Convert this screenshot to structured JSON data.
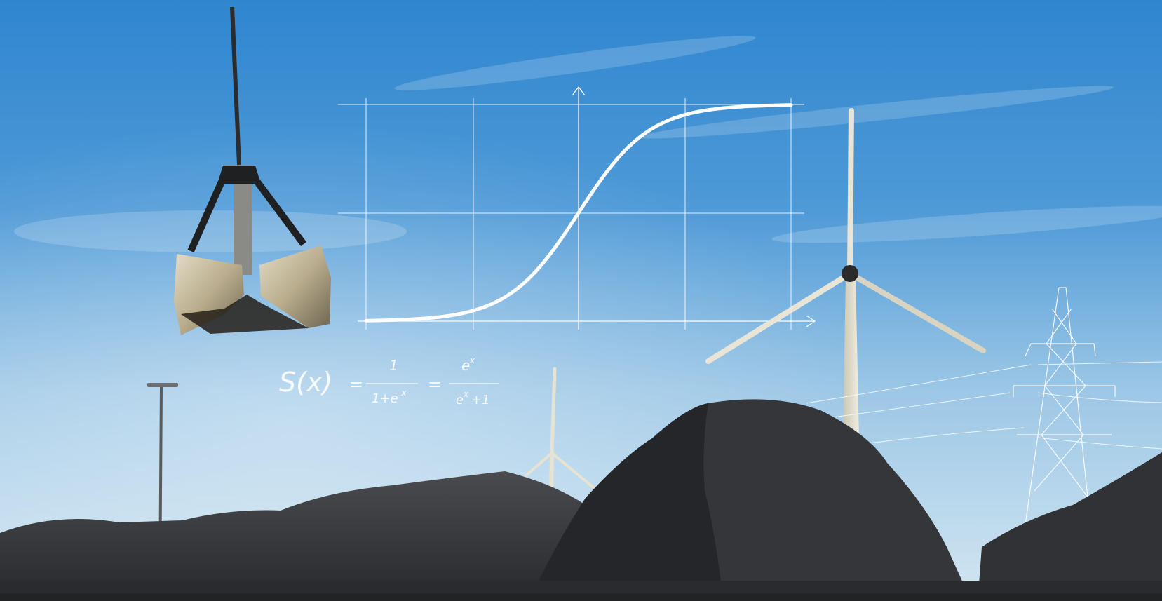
{
  "scene": {
    "description_free": true,
    "sky_colors": [
      "#2f86cf",
      "#5aa5dd",
      "#a9cfea",
      "#d6e7f1"
    ],
    "coal_color": "#3a3b3e",
    "line_color": "#ffffff"
  },
  "formula": {
    "lhs": "S(x)",
    "eq1": "=",
    "num1": "1",
    "den1": "1+e",
    "den1_exp": "-x",
    "eq2": "=",
    "num2": "e",
    "num2_exp": "x",
    "den2": "e",
    "den2_exp": "x",
    "den2_tail": "+1"
  },
  "chart_data": {
    "type": "line",
    "series": [
      {
        "values_fn": "sigmoid",
        "x": [
          -6,
          -5,
          -4,
          -3,
          -2,
          -1,
          0,
          1,
          2,
          3,
          4,
          5,
          6
        ],
        "y": [
          0.0025,
          0.0067,
          0.018,
          0.047,
          0.119,
          0.269,
          0.5,
          0.731,
          0.881,
          0.953,
          0.982,
          0.993,
          0.9975
        ]
      }
    ],
    "xlim": [
      -6,
      6
    ],
    "ylim": [
      0,
      1
    ],
    "grid": true,
    "title": "",
    "xlabel": "",
    "ylabel": ""
  }
}
